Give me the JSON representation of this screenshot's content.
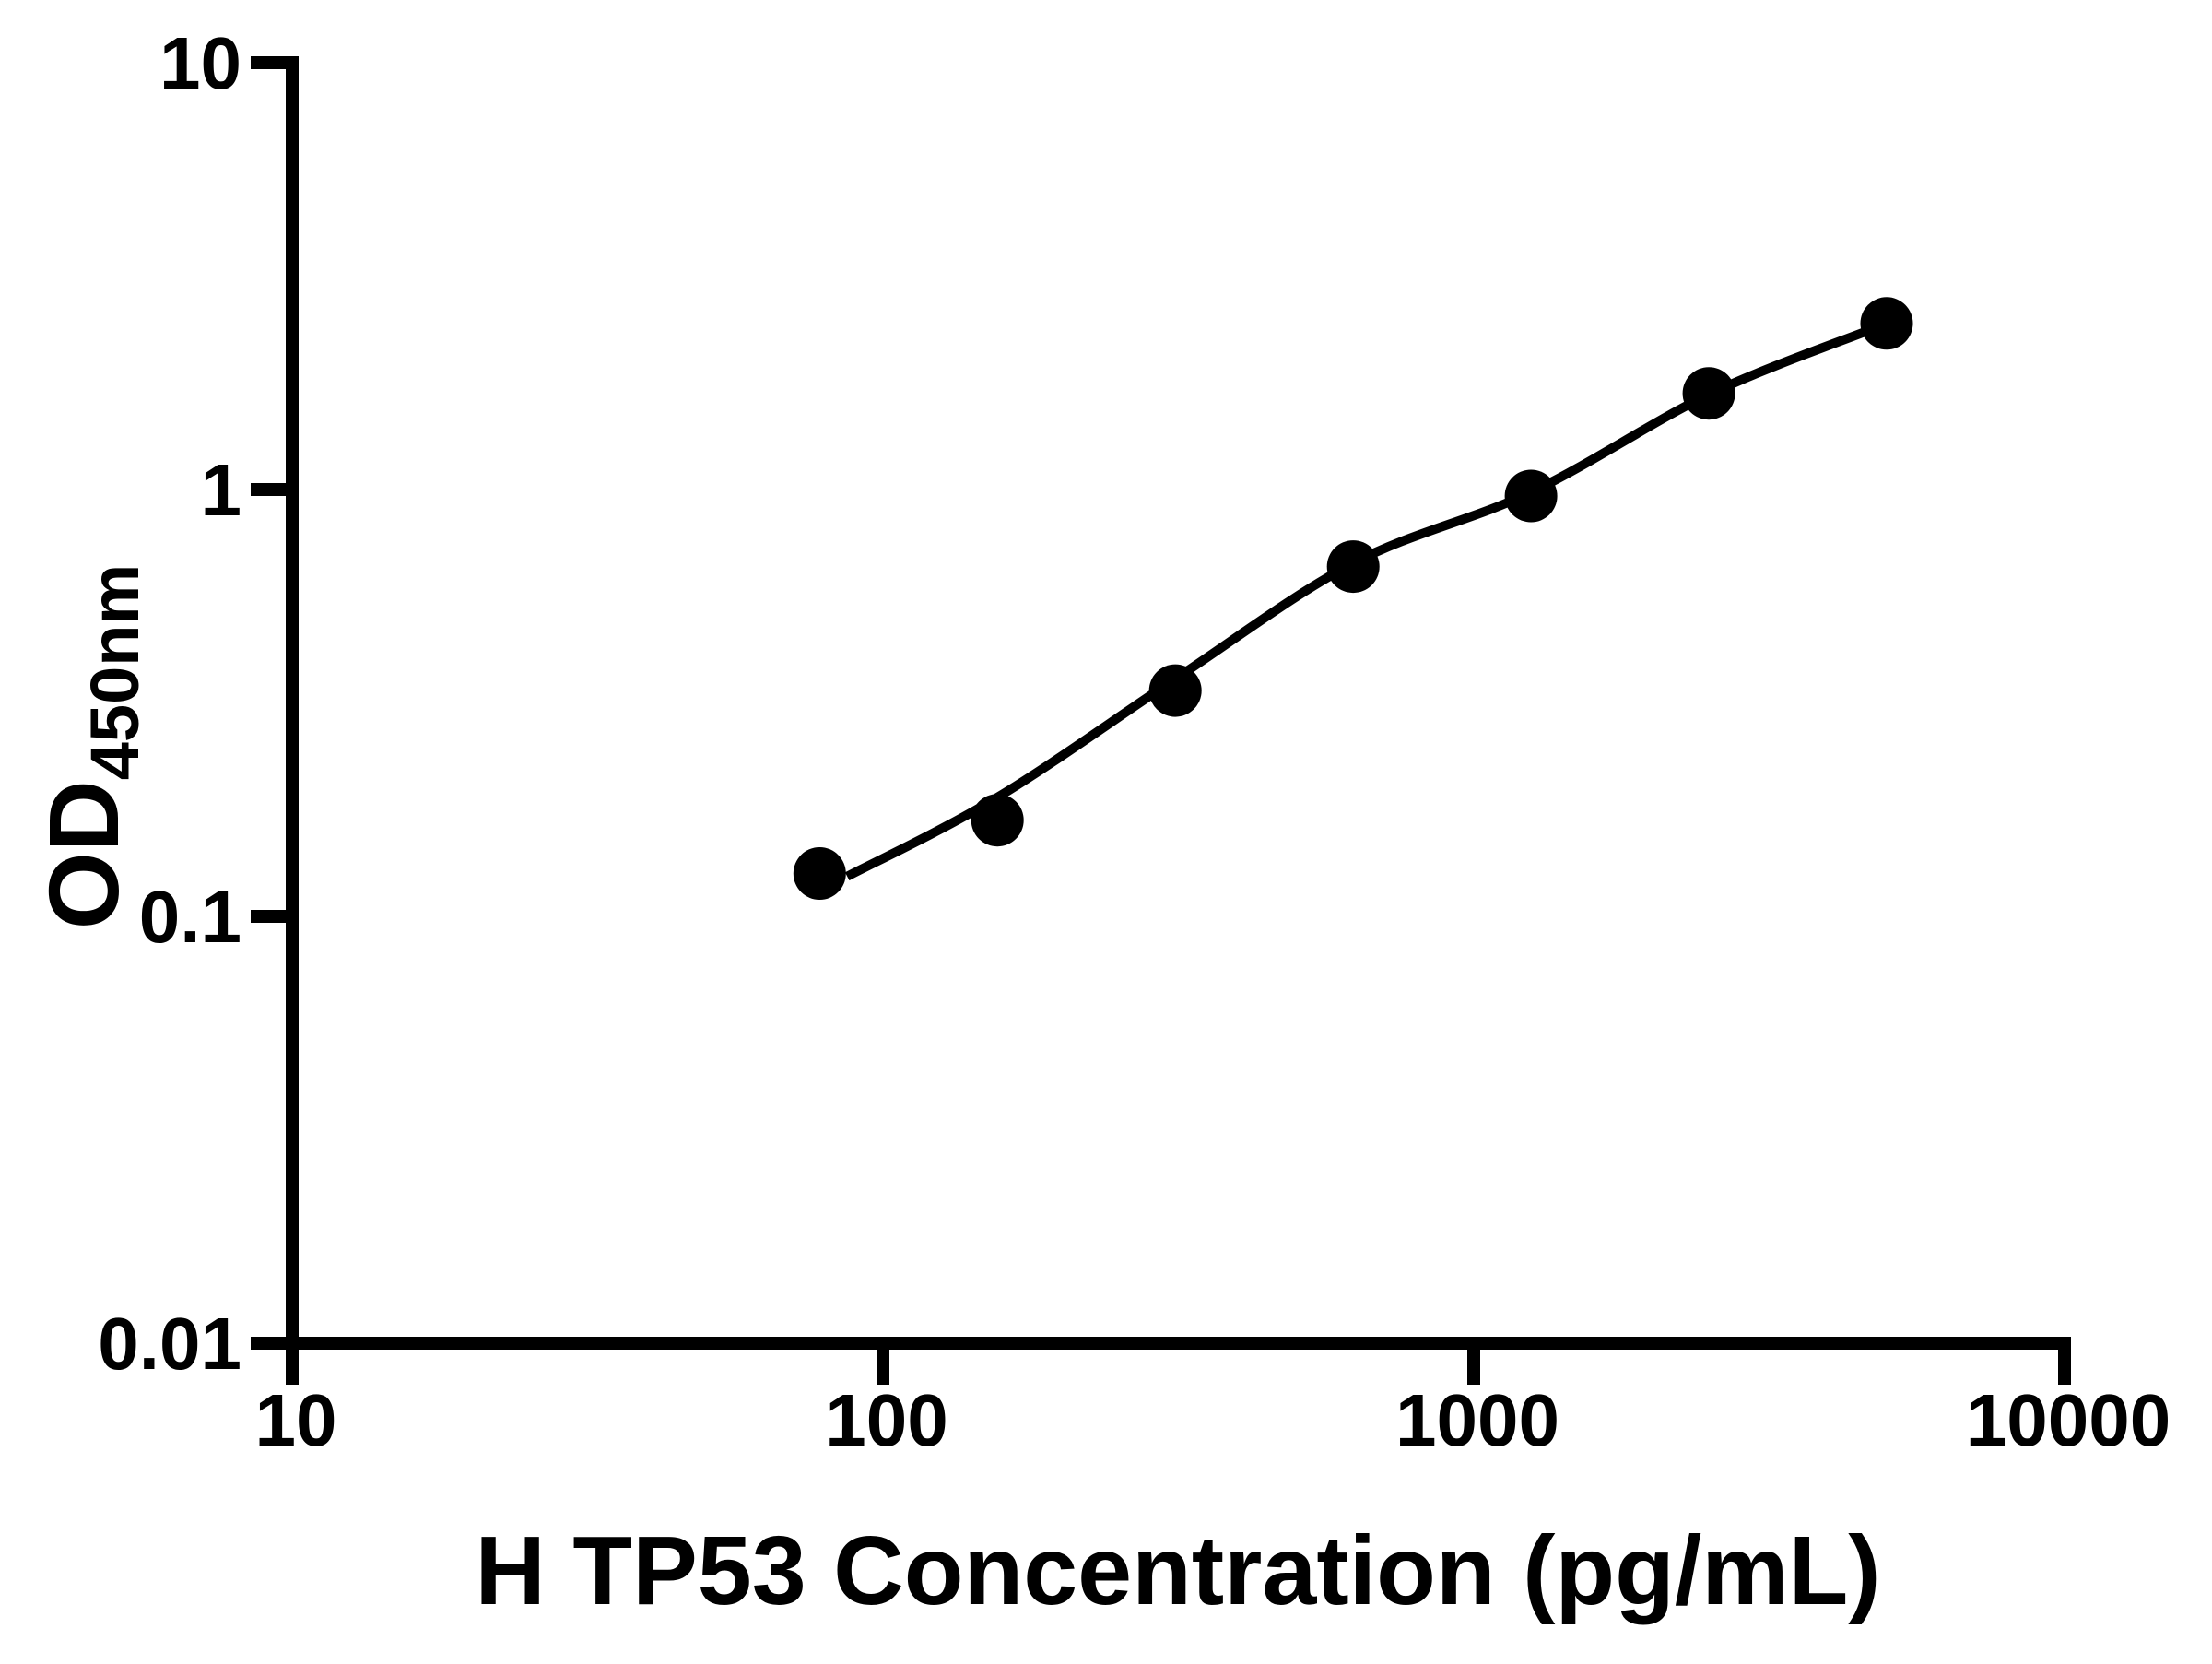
{
  "chart_data": {
    "type": "scatter",
    "title": "",
    "xlabel": "H TP53 Concentration (pg/mL)",
    "ylabel_main": "OD",
    "ylabel_sub": "450nm",
    "x_scale": "log",
    "y_scale": "log",
    "xlim": [
      10,
      10000
    ],
    "ylim": [
      0.01,
      10
    ],
    "x_ticks": [
      10,
      100,
      1000,
      10000
    ],
    "x_tick_labels": [
      "10",
      "100",
      "1000",
      "10000"
    ],
    "y_ticks": [
      10,
      1,
      0.1,
      0.01
    ],
    "y_tick_labels": [
      "10",
      "1",
      "0.1",
      "0.01"
    ],
    "grid": false,
    "legend": "none",
    "series": [
      {
        "marker": "filled-circle",
        "color": "#000000",
        "x": [
          78.125,
          156.25,
          312.5,
          625,
          1250,
          2500,
          5000
        ],
        "od": [
          0.126,
          0.168,
          0.338,
          0.66,
          0.966,
          1.68,
          2.45
        ]
      }
    ],
    "fit_curve": {
      "x": [
        87,
        156.25,
        312.5,
        625,
        1250,
        2500,
        4700
      ],
      "od": [
        0.124,
        0.19,
        0.36,
        0.672,
        0.985,
        1.67,
        2.37
      ]
    }
  },
  "colors": {
    "foreground": "#000000",
    "background": "#ffffff"
  }
}
